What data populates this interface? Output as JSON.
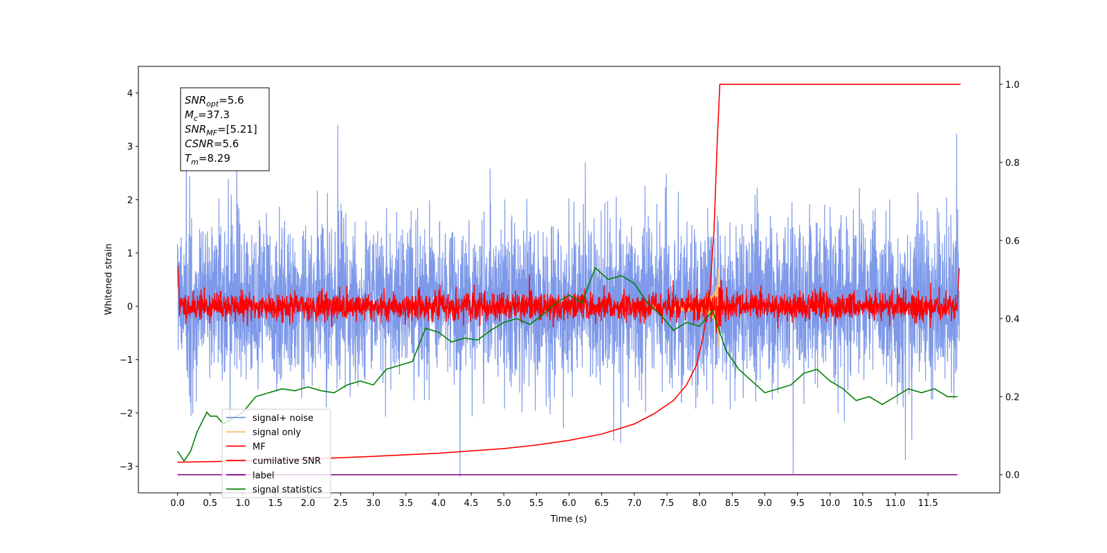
{
  "chart_data": {
    "type": "line",
    "title": "",
    "xlabel": "Time (s)",
    "ylabel": "Whitened strain",
    "xlim": [
      -0.6,
      12.6
    ],
    "ylim": [
      -3.5,
      4.5
    ],
    "y2lim": [
      -0.0465,
      1.046
    ],
    "grid": false,
    "legend_position": "lower-left",
    "x_ticks": [
      "0.0",
      "0.5",
      "1.0",
      "1.5",
      "2.0",
      "2.5",
      "3.0",
      "3.5",
      "4.0",
      "4.5",
      "5.0",
      "5.5",
      "6.0",
      "6.5",
      "7.0",
      "7.5",
      "8.0",
      "8.5",
      "9.0",
      "9.5",
      "10.0",
      "10.5",
      "11.0",
      "11.5"
    ],
    "y_ticks": [
      "−3",
      "−2",
      "−1",
      "0",
      "1",
      "2",
      "3",
      "4"
    ],
    "y2_ticks": [
      "0.0",
      "0.2",
      "0.4",
      "0.6",
      "0.8",
      "1.0"
    ],
    "annotation": {
      "lines": [
        {
          "base": "SNR",
          "sub": "opt",
          "rest": "=5.6"
        },
        {
          "base": "M",
          "sub": "c",
          "rest": "=37.3"
        },
        {
          "base": "SNR",
          "sub": "MF",
          "rest": "=[5.21]"
        },
        {
          "base": "CSNR",
          "sub": "",
          "rest": "=5.6"
        },
        {
          "base": "T",
          "sub": "m",
          "rest": "=8.29"
        }
      ]
    },
    "series": [
      {
        "name": "signal+ noise",
        "color": "#7793e8",
        "axis": "left",
        "description": "whitened strain noise, approx ±1.5 with peaks to ±3.4, duration 0–12 s",
        "amplitude": 1.0,
        "seed": 7
      },
      {
        "name": "signal only",
        "color": "#f5bf6a",
        "axis": "left",
        "description": "chirp signal near merger",
        "merger_time": 8.29,
        "peak": 1.0
      },
      {
        "name": "MF",
        "color": "#ff0000",
        "axis": "left",
        "description": "matched filter output, approx ±0.3 band",
        "amplitude": 0.13,
        "seed": 11
      },
      {
        "name": "cumilative SNR",
        "color": "#ff0000",
        "axis": "right",
        "x": [
          0.0,
          1.0,
          2.0,
          3.0,
          4.0,
          5.0,
          5.5,
          6.0,
          6.5,
          7.0,
          7.3,
          7.6,
          7.8,
          7.95,
          8.05,
          8.15,
          8.22,
          8.27,
          8.31,
          12.0
        ],
        "values": [
          0.032,
          0.035,
          0.04,
          0.047,
          0.055,
          0.067,
          0.076,
          0.088,
          0.104,
          0.13,
          0.156,
          0.19,
          0.23,
          0.28,
          0.35,
          0.45,
          0.62,
          0.85,
          1.0,
          1.0
        ]
      },
      {
        "name": "label",
        "color": "#800080",
        "axis": "right",
        "x": [
          0.0,
          11.95
        ],
        "values": [
          0.0,
          0.0
        ]
      },
      {
        "name": "signal statistics",
        "color": "#008000",
        "axis": "right",
        "x": [
          0.0,
          0.1,
          0.2,
          0.3,
          0.45,
          0.5,
          0.6,
          0.7,
          0.8,
          1.0,
          1.2,
          1.4,
          1.6,
          1.8,
          2.0,
          2.2,
          2.4,
          2.6,
          2.8,
          3.0,
          3.2,
          3.4,
          3.6,
          3.8,
          4.0,
          4.2,
          4.4,
          4.6,
          4.8,
          5.0,
          5.2,
          5.4,
          5.6,
          5.8,
          6.0,
          6.2,
          6.4,
          6.6,
          6.8,
          7.0,
          7.2,
          7.4,
          7.6,
          7.8,
          8.0,
          8.2,
          8.4,
          8.6,
          8.8,
          9.0,
          9.2,
          9.4,
          9.6,
          9.8,
          10.0,
          10.2,
          10.4,
          10.6,
          10.8,
          11.0,
          11.2,
          11.4,
          11.6,
          11.8,
          11.95
        ],
        "values": [
          0.06,
          0.035,
          0.06,
          0.11,
          0.16,
          0.15,
          0.15,
          0.13,
          0.14,
          0.16,
          0.2,
          0.21,
          0.22,
          0.215,
          0.225,
          0.215,
          0.21,
          0.23,
          0.24,
          0.23,
          0.27,
          0.28,
          0.29,
          0.375,
          0.365,
          0.34,
          0.35,
          0.345,
          0.37,
          0.39,
          0.4,
          0.385,
          0.41,
          0.44,
          0.46,
          0.44,
          0.53,
          0.5,
          0.51,
          0.49,
          0.44,
          0.41,
          0.37,
          0.39,
          0.38,
          0.42,
          0.32,
          0.27,
          0.24,
          0.21,
          0.22,
          0.23,
          0.26,
          0.27,
          0.24,
          0.22,
          0.19,
          0.2,
          0.18,
          0.2,
          0.22,
          0.21,
          0.22,
          0.2,
          0.2
        ]
      }
    ]
  }
}
